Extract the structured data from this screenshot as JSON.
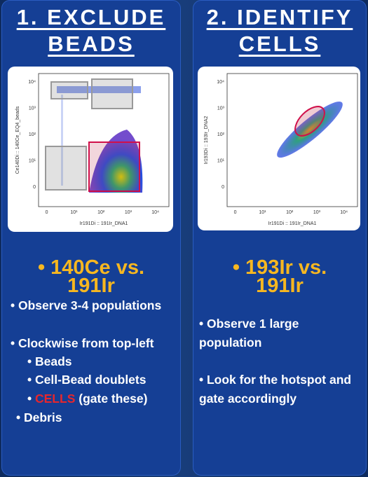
{
  "panels": [
    {
      "title": [
        "1. EXCLUDE",
        "BEADS"
      ],
      "plot": {
        "y_label": "Ce140Di :: 140Ce_EQ4_beads",
        "x_label": "Ir191Di :: 191Ir_DNA1",
        "yticks": [
          "10⁴",
          "10³",
          "10²",
          "10¹",
          "0"
        ],
        "xticks": [
          "0",
          "10¹",
          "10²",
          "10³",
          "10⁴"
        ]
      },
      "heading": [
        "• 140Ce vs.",
        "191Ir"
      ],
      "bullets": [
        {
          "parts": [
            "• Observe 3-4 populations"
          ]
        },
        {
          "parts": [
            "• Clockwise from top-left"
          ]
        },
        {
          "parts": [
            "• Beads"
          ]
        },
        {
          "parts": [
            "• Cell-Bead doublets"
          ]
        },
        {
          "parts": [
            "• ",
            "CELLS",
            " (gate these)"
          ]
        },
        {
          "parts": [
            "• Debris"
          ]
        }
      ]
    },
    {
      "title": [
        "2. IDENTIFY",
        "CELLS"
      ],
      "plot": {
        "y_label": "Ir193Di :: 193Ir_DNA2",
        "x_label": "Ir191Di :: 191Ir_DNA1",
        "yticks": [
          "10⁴",
          "10³",
          "10²",
          "10¹",
          "0"
        ],
        "xticks": [
          "0",
          "10¹",
          "10²",
          "10³",
          "10⁴"
        ]
      },
      "heading": [
        "• 193Ir vs.",
        "191Ir"
      ],
      "bullets": [
        {
          "parts": [
            "• Observe 1 large population"
          ]
        },
        {
          "parts": [
            "• Look for the hotspot and gate accordingly"
          ]
        }
      ]
    }
  ]
}
